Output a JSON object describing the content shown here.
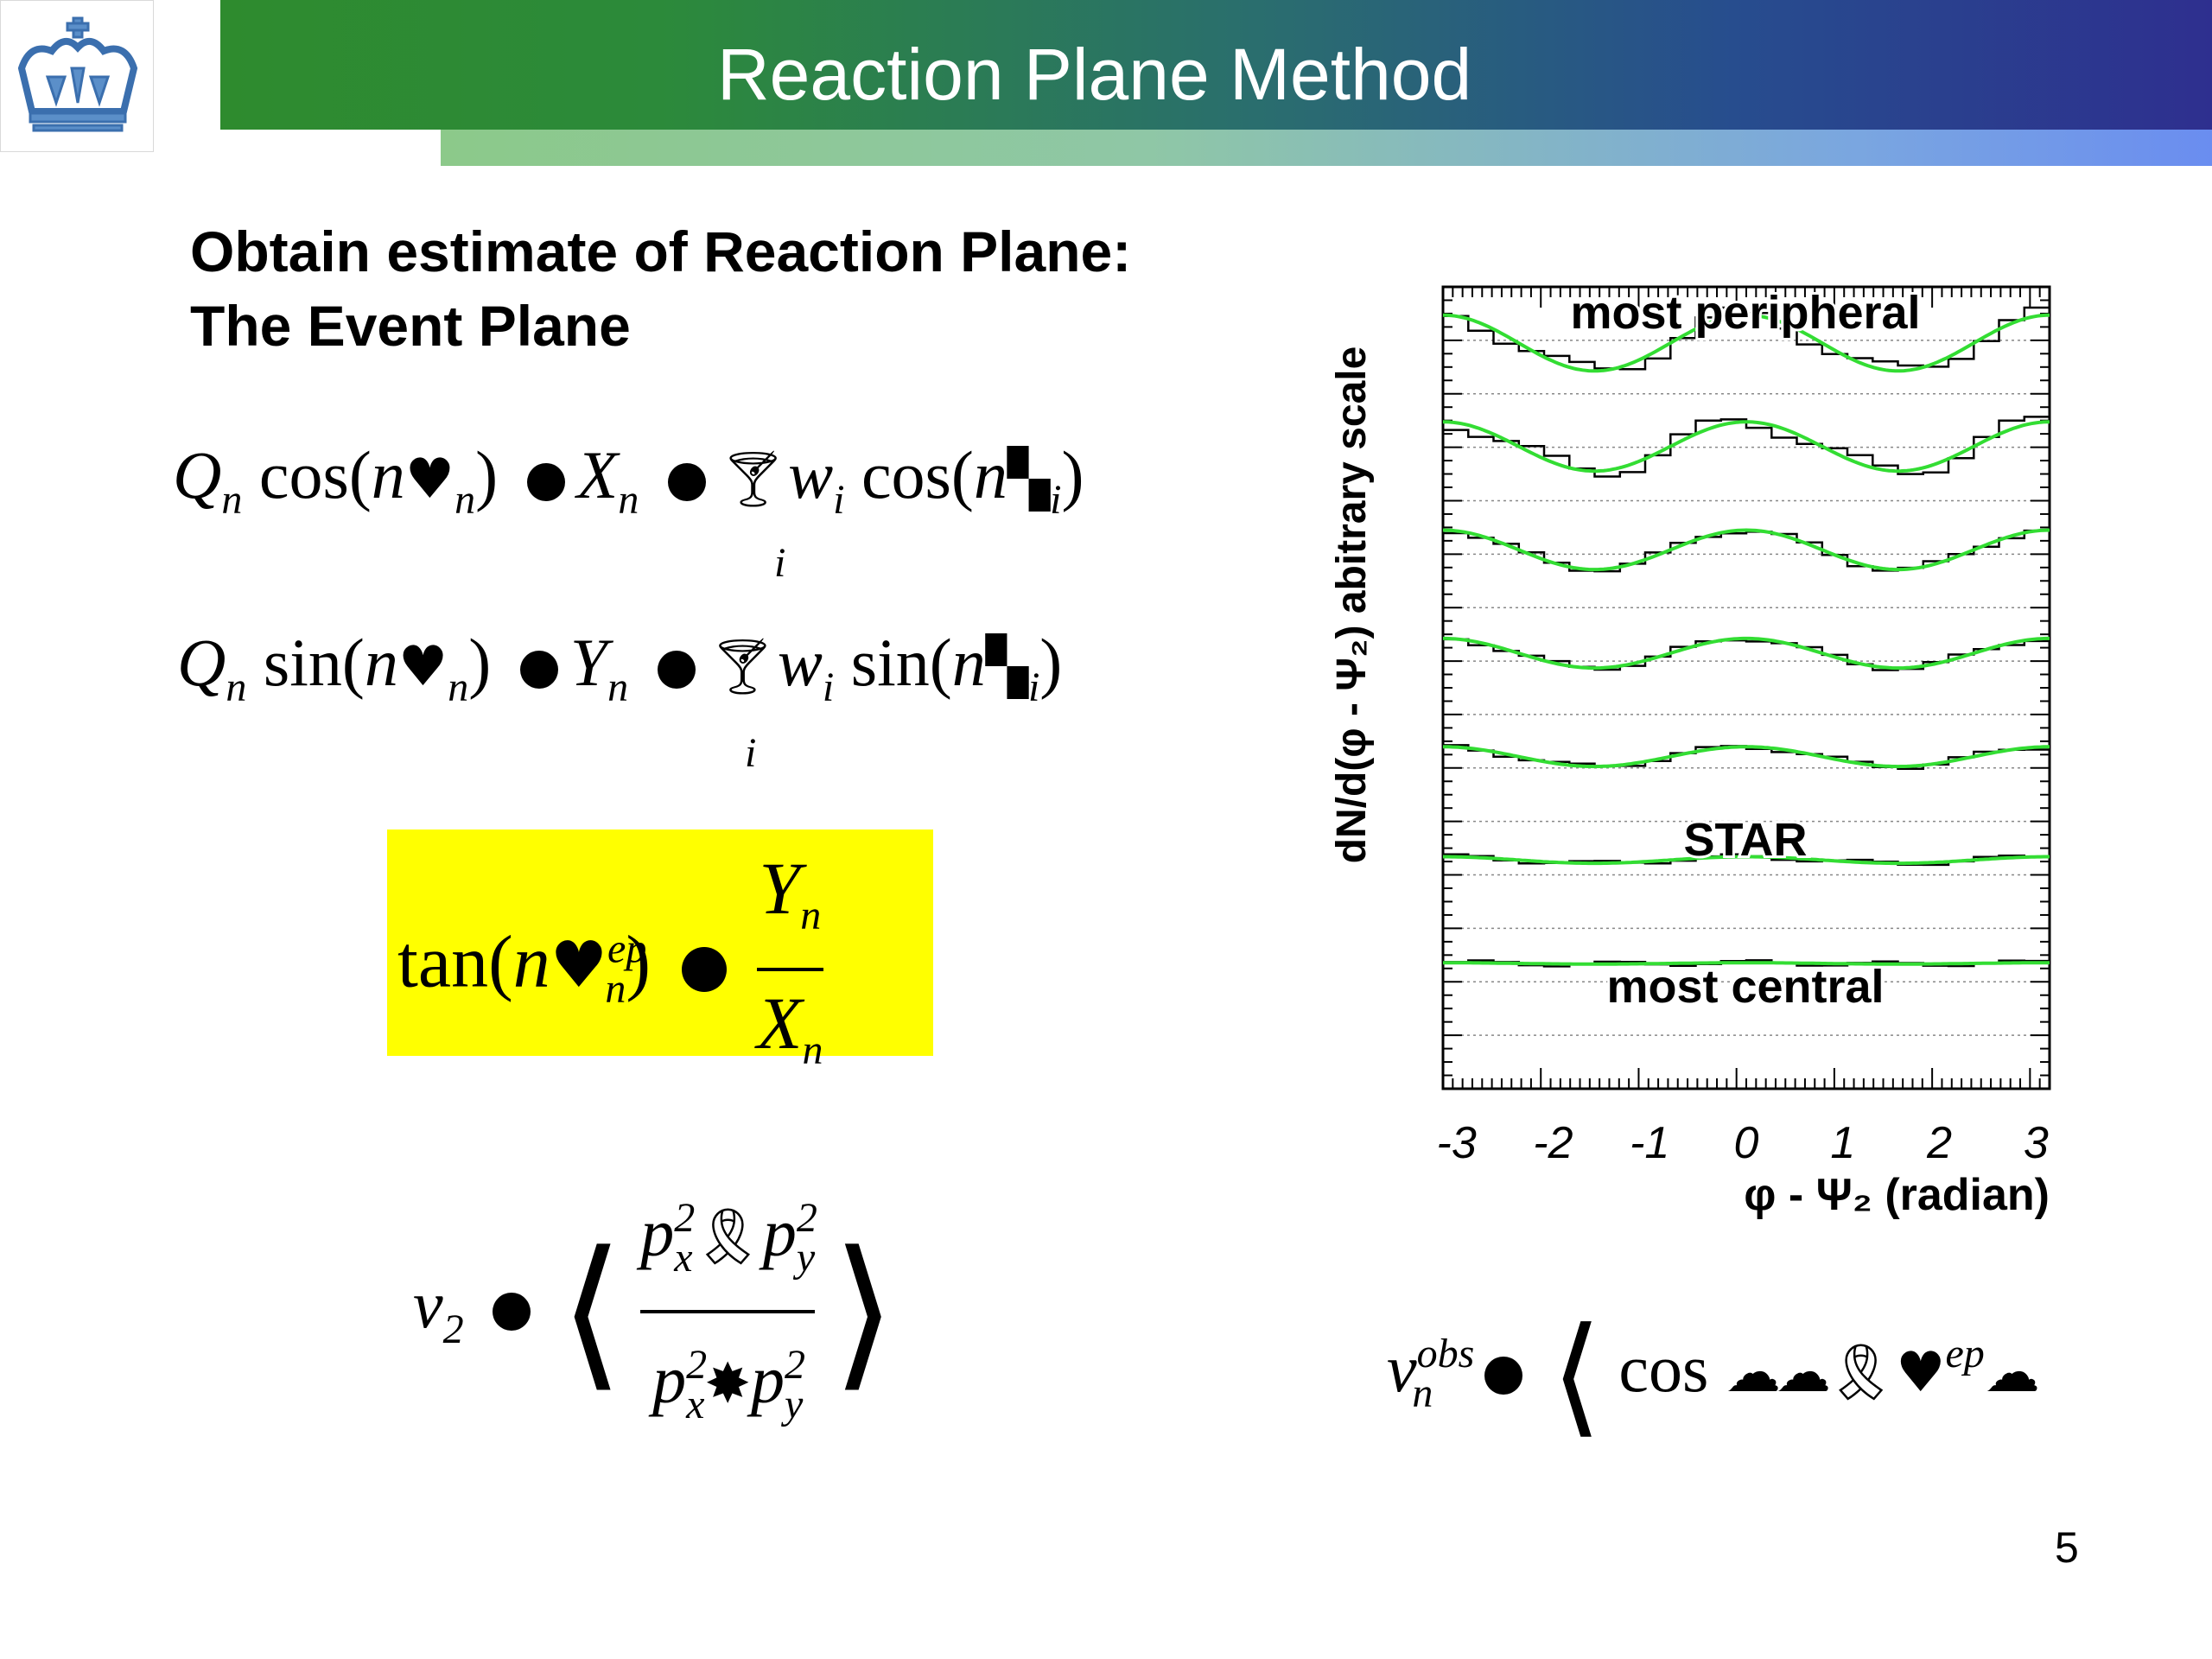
{
  "slide": {
    "title": "Reaction Plane Method",
    "heading_line1": "Obtain estimate of Reaction Plane:",
    "heading_line2": "The Event Plane",
    "page_number": "5",
    "logo_icon": "crown-logo-icon"
  },
  "equations": {
    "eq1": {
      "lhs": "Q",
      "sub_n": "n",
      "func": "cos(",
      "n": "n",
      "close": ")",
      "X": "X",
      "w": "w",
      "sub_i": "i",
      "sum_index": "i"
    },
    "eq2": {
      "lhs": "Q",
      "sub_n": "n",
      "func": "sin(",
      "n": "n",
      "close": ")",
      "Y": "Y",
      "w": "w",
      "sub_i": "i",
      "sum_index": "i"
    },
    "eq3": {
      "func": "tan(",
      "n": "n",
      "sup": "ep",
      "sub": "n",
      "close": ")",
      "num": "Y",
      "den": "X",
      "sub_num": "n",
      "sub_den": "n"
    },
    "eq4": {
      "v": "v",
      "sub": "2",
      "p": "p",
      "sq": "2",
      "x": "x",
      "y": "y"
    },
    "eq5": {
      "v": "v",
      "sup": "obs",
      "sub": "n",
      "func": "cos",
      "sup_ep": "ep"
    }
  },
  "chart_data": {
    "type": "line",
    "ylabel": "dN/d(φ - Ψ₂) abitrary scale",
    "xlabel": "φ - Ψ₂ (radian)",
    "xlim": [
      -3.14,
      3.14
    ],
    "x_ticks": [
      "-3",
      "-2",
      "-1",
      "0",
      "1",
      "2",
      "3"
    ],
    "annotations": [
      "most peripheral",
      "STAR",
      "most central"
    ],
    "series": [
      {
        "offset": 6,
        "v2": 0.85
      },
      {
        "offset": 5,
        "v2": 0.75
      },
      {
        "offset": 4,
        "v2": 0.6
      },
      {
        "offset": 3,
        "v2": 0.45
      },
      {
        "offset": 2,
        "v2": 0.3
      },
      {
        "offset": 1,
        "v2": 0.1
      },
      {
        "offset": 0,
        "v2": 0.02
      }
    ],
    "fit_color": "#33dd33",
    "hist_color": "#000000"
  }
}
